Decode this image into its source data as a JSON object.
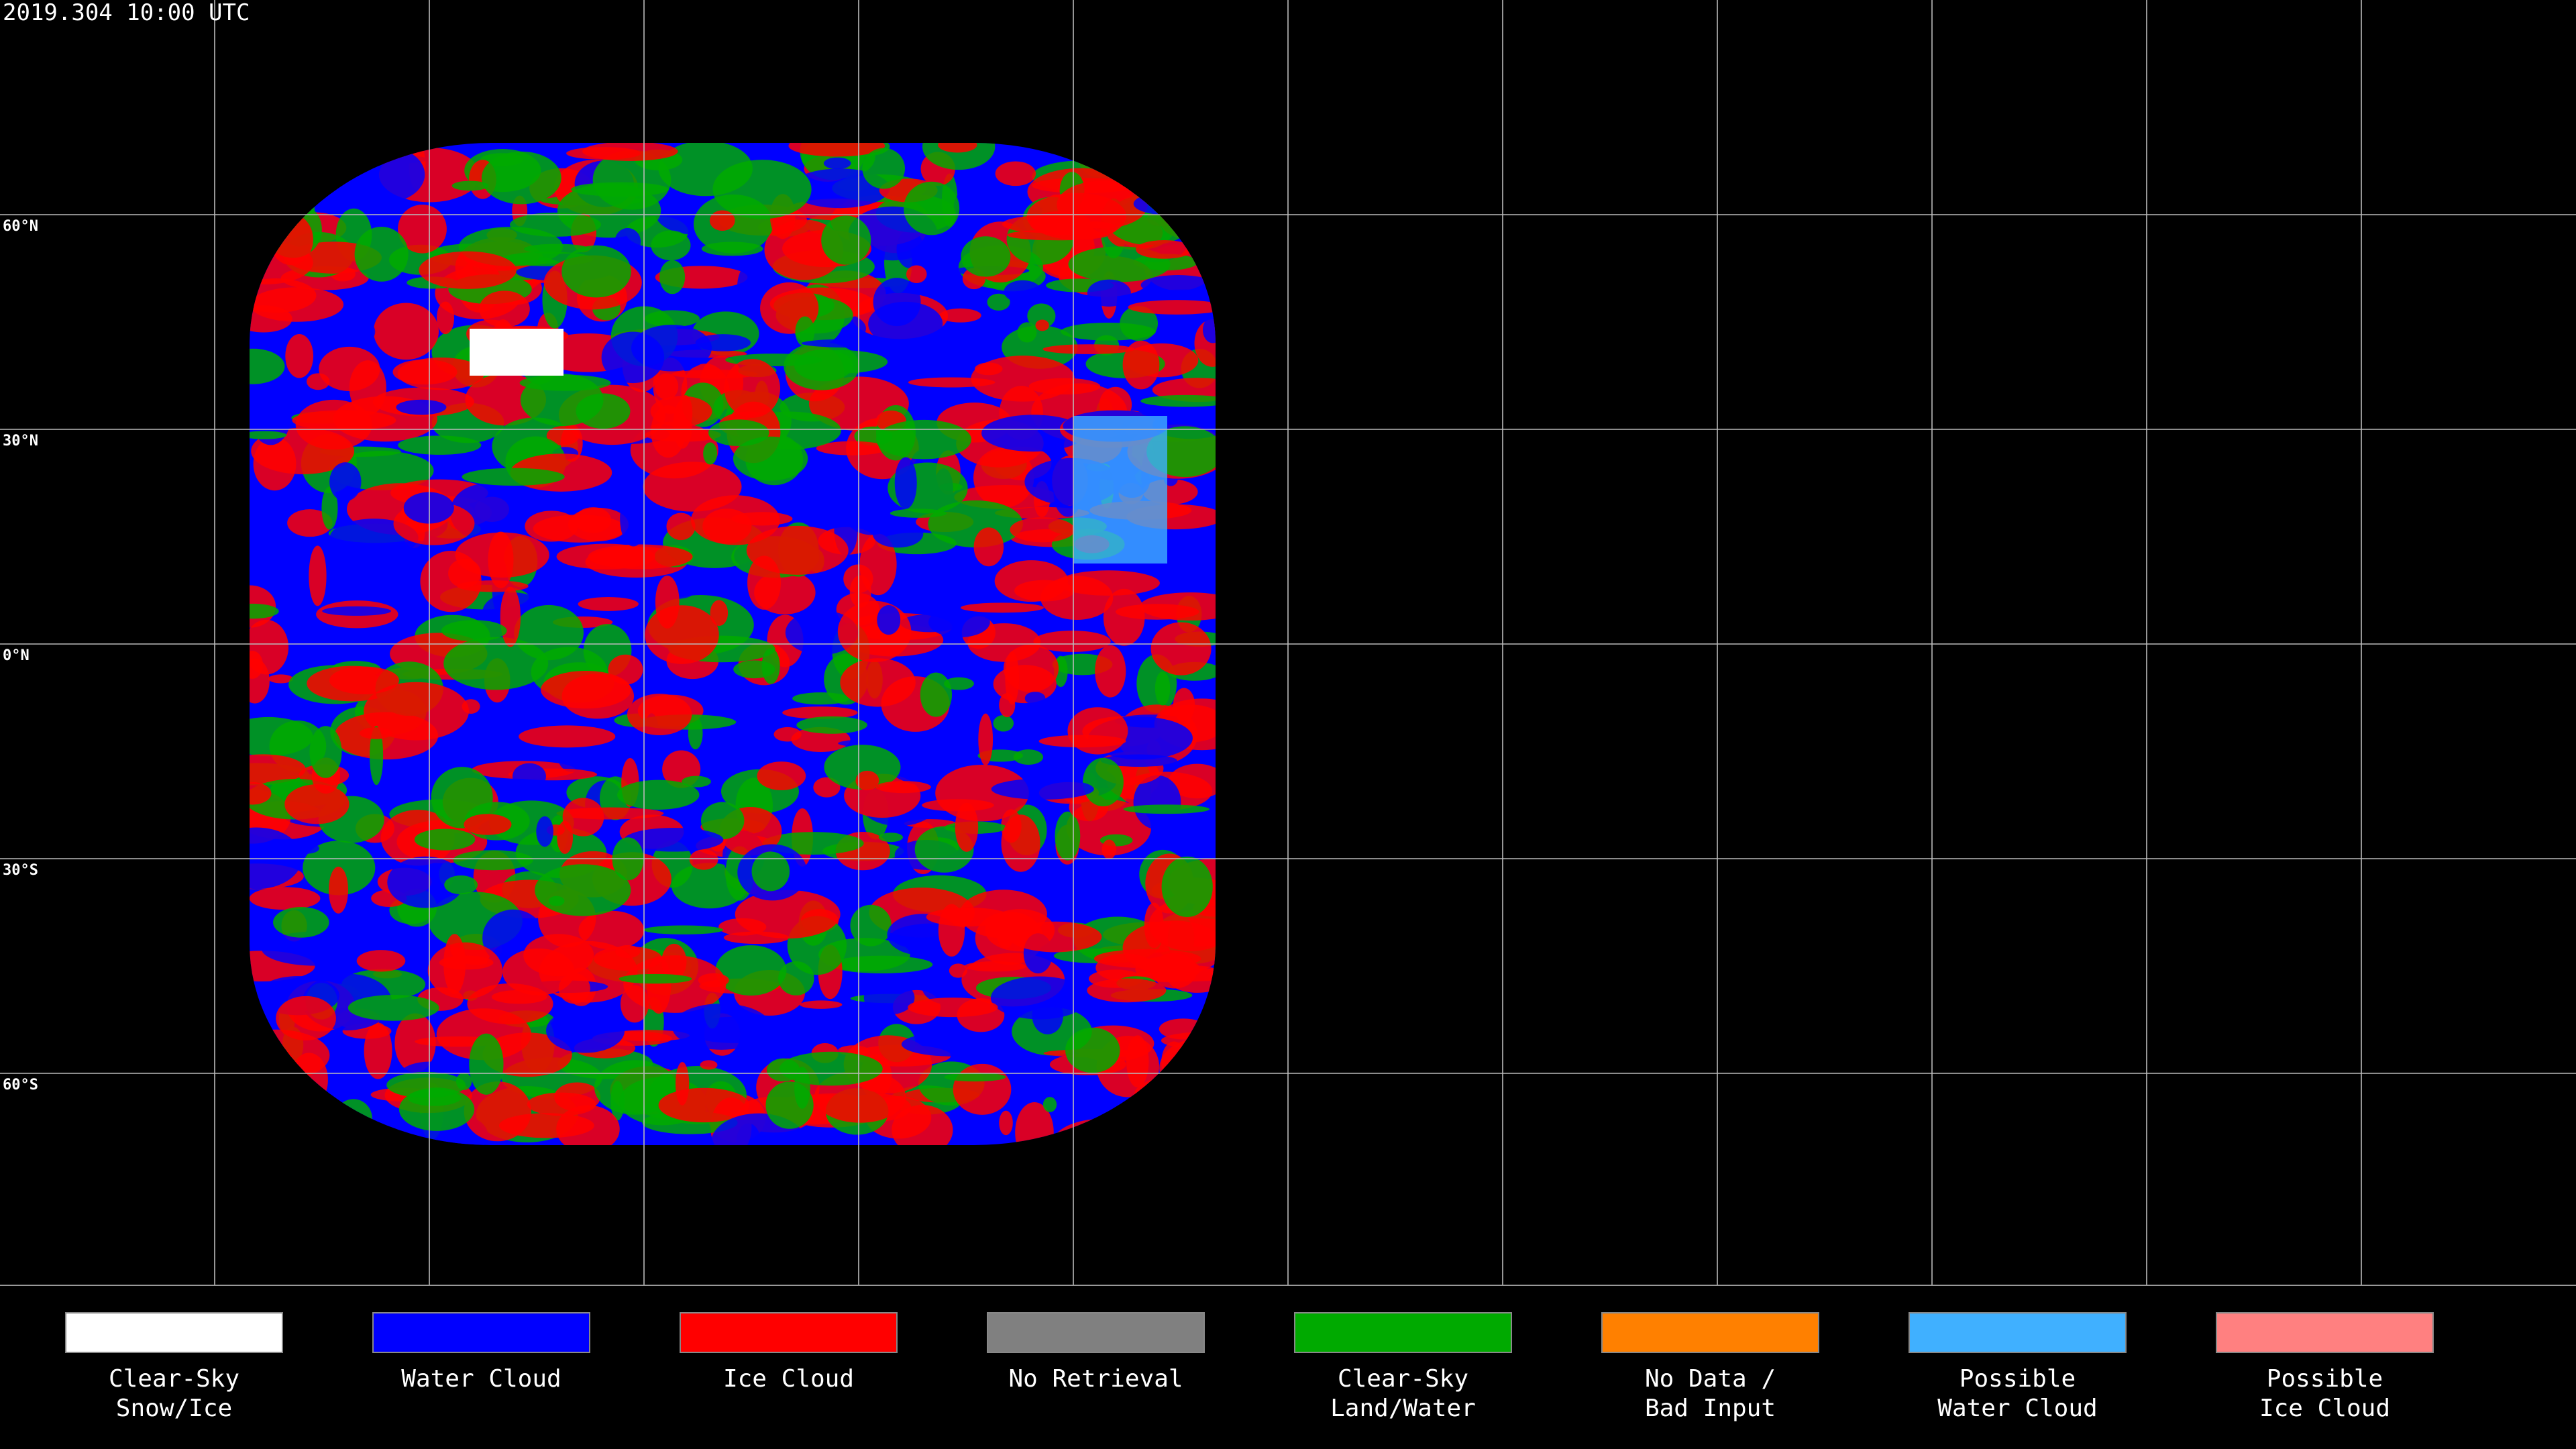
{
  "header": {
    "timestamp": "2019.304 10:00 UTC"
  },
  "map": {
    "lat_labels": [
      "60°N",
      "30°N",
      "0°N",
      "30°S",
      "60°S"
    ]
  },
  "legend": {
    "items": [
      {
        "label": [
          "Clear-Sky",
          "Snow/Ice"
        ],
        "color": "#ffffff"
      },
      {
        "label": [
          "Water Cloud"
        ],
        "color": "#0000ff"
      },
      {
        "label": [
          "Ice Cloud"
        ],
        "color": "#ff0000"
      },
      {
        "label": [
          "No Retrieval"
        ],
        "color": "#808080"
      },
      {
        "label": [
          "Clear-Sky",
          "Land/Water"
        ],
        "color": "#00aa00"
      },
      {
        "label": [
          "No Data /",
          "Bad Input"
        ],
        "color": "#ff8000"
      },
      {
        "label": [
          "Possible",
          "Water Cloud"
        ],
        "color": "#40b0ff"
      },
      {
        "label": [
          "Possible",
          "Ice Cloud"
        ],
        "color": "#ff8080"
      }
    ]
  }
}
